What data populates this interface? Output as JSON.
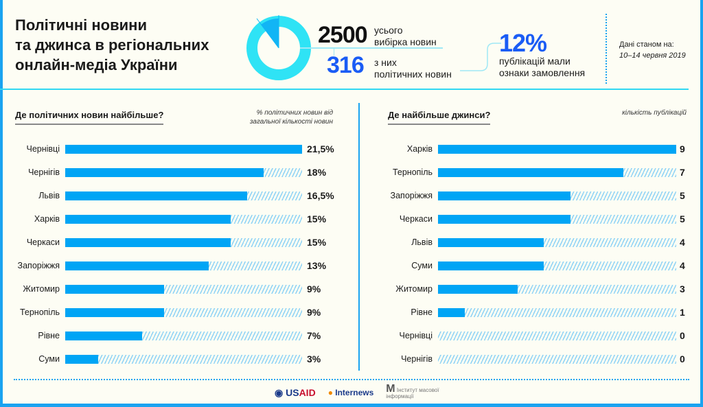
{
  "title": [
    "Політичні новини",
    "та джинса в регіональних",
    "онлайн-медіа України"
  ],
  "stats": {
    "total": "2500",
    "total_label": [
      "усього",
      "вибірка новин"
    ],
    "political": "316",
    "political_label": [
      "з них",
      "політичних новин"
    ],
    "percent": "12%",
    "percent_label": [
      "публікацій мали",
      "ознаки замовлення"
    ]
  },
  "date": {
    "label": "Дані станом на:",
    "value": "10–14 червня 2019"
  },
  "colors": {
    "bar": "#00a5f5",
    "donut": "#2fe3f5",
    "accent": "#1a5cf5"
  },
  "chart_data": [
    {
      "type": "bar",
      "orientation": "horizontal",
      "title": "Де політичних новин найбільше?",
      "note": "% політичних новин від загальної кількості новин",
      "categories": [
        "Чернівці",
        "Чернігів",
        "Львів",
        "Харків",
        "Черкаси",
        "Запоріжжя",
        "Житомир",
        "Тернопіль",
        "Рівне",
        "Суми"
      ],
      "values": [
        21.5,
        18,
        16.5,
        15,
        15,
        13,
        9,
        9,
        7,
        3
      ],
      "labels": [
        "21,5%",
        "18%",
        "16,5%",
        "15%",
        "15%",
        "13%",
        "9%",
        "9%",
        "7%",
        "3%"
      ],
      "xlim": [
        0,
        21.5
      ]
    },
    {
      "type": "bar",
      "orientation": "horizontal",
      "title": "Де найбільше джинси?",
      "note": "кількість публікацій",
      "categories": [
        "Харків",
        "Тернопіль",
        "Запоріжжя",
        "Черкаси",
        "Львів",
        "Суми",
        "Житомир",
        "Рівне",
        "Чернівці",
        "Чернігів"
      ],
      "values": [
        9,
        7,
        5,
        5,
        4,
        4,
        3,
        1,
        0,
        0
      ],
      "labels": [
        "9",
        "7",
        "5",
        "5",
        "4",
        "4",
        "3",
        "1",
        "0",
        "0"
      ],
      "xlim": [
        0,
        9
      ]
    }
  ],
  "footer": {
    "logos": [
      "USAID",
      "Internews",
      "Інститут масової інформації"
    ]
  }
}
